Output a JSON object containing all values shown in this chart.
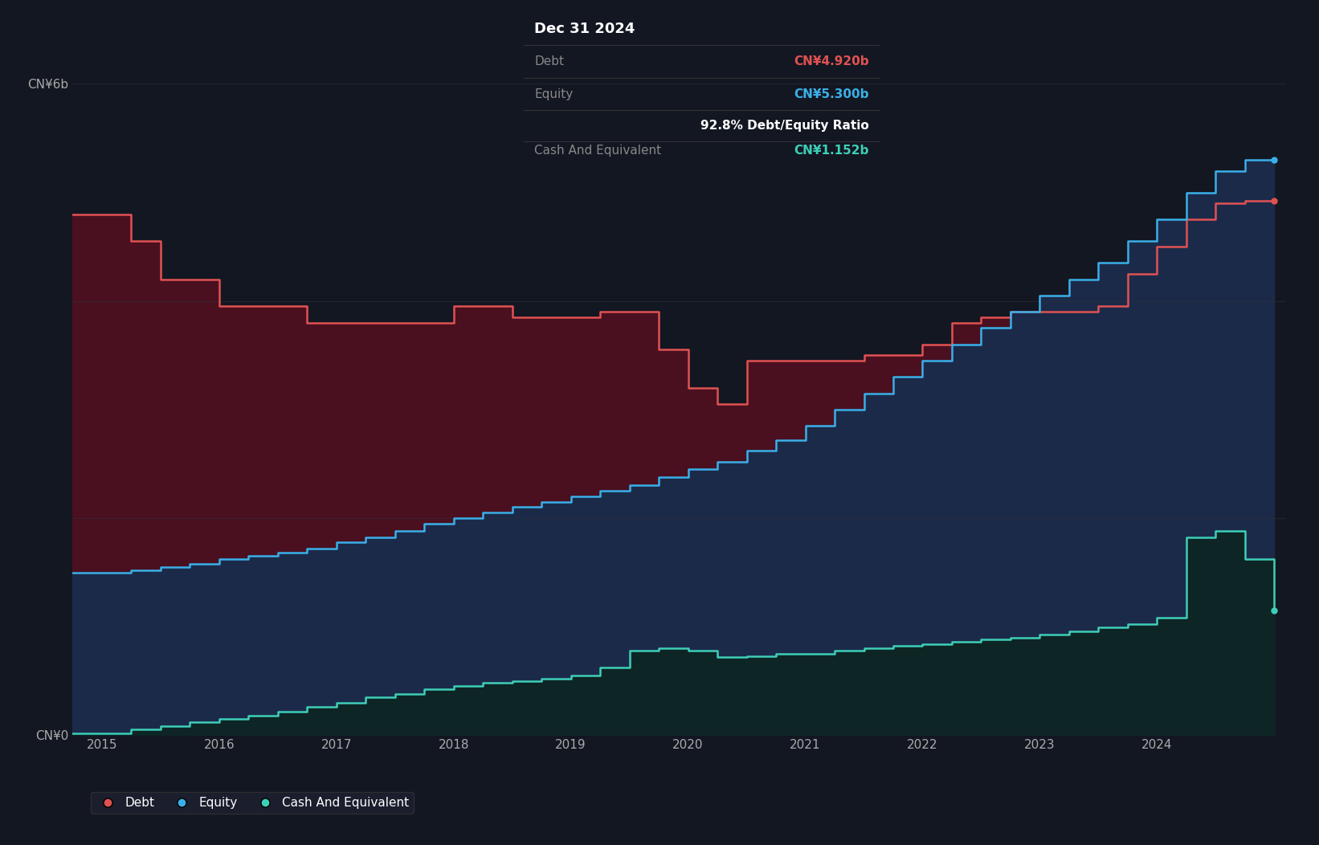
{
  "bg_color": "#131722",
  "plot_bg_color": "#131722",
  "grid_color": "#2a2e39",
  "debt_color": "#e05252",
  "equity_color": "#3ab0e8",
  "cash_color": "#3ecfb8",
  "debt_fill": "#4a1020",
  "equity_fill": "#1c2a4a",
  "cash_fill": "#0d2525",
  "tooltip": {
    "date": "Dec 31 2024",
    "debt_label": "Debt",
    "debt_value": "CN¥4.920b",
    "equity_label": "Equity",
    "equity_value": "CN¥5.300b",
    "ratio_text": "92.8% Debt/Equity Ratio",
    "cash_label": "Cash And Equivalent",
    "cash_value": "CN¥1.152b",
    "debt_color": "#e05252",
    "equity_color": "#3ab0e8",
    "cash_color": "#3ecfb8",
    "bg_color": "#050505",
    "border_color": "#404040"
  },
  "legend": [
    {
      "label": "Debt",
      "color": "#e05252"
    },
    {
      "label": "Equity",
      "color": "#3ab0e8"
    },
    {
      "label": "Cash And Equivalent",
      "color": "#3ecfb8"
    }
  ],
  "dates": [
    2014.75,
    2015.0,
    2015.25,
    2015.5,
    2015.75,
    2016.0,
    2016.25,
    2016.5,
    2016.75,
    2017.0,
    2017.25,
    2017.5,
    2017.75,
    2018.0,
    2018.25,
    2018.5,
    2018.75,
    2019.0,
    2019.25,
    2019.5,
    2019.75,
    2020.0,
    2020.25,
    2020.5,
    2020.75,
    2021.0,
    2021.25,
    2021.5,
    2021.75,
    2022.0,
    2022.25,
    2022.5,
    2022.75,
    2023.0,
    2023.25,
    2023.5,
    2023.75,
    2024.0,
    2024.25,
    2024.5,
    2024.75,
    2025.0
  ],
  "debt": [
    4.8,
    4.8,
    4.55,
    4.2,
    4.2,
    3.95,
    3.95,
    3.95,
    3.8,
    3.8,
    3.8,
    3.8,
    3.8,
    3.95,
    3.95,
    3.85,
    3.85,
    3.85,
    3.9,
    3.9,
    3.55,
    3.2,
    3.05,
    3.45,
    3.45,
    3.45,
    3.45,
    3.5,
    3.5,
    3.6,
    3.8,
    3.85,
    3.9,
    3.9,
    3.9,
    3.95,
    4.25,
    4.5,
    4.75,
    4.9,
    4.92,
    4.92
  ],
  "equity": [
    1.5,
    1.5,
    1.52,
    1.55,
    1.58,
    1.62,
    1.65,
    1.68,
    1.72,
    1.78,
    1.82,
    1.88,
    1.95,
    2.0,
    2.05,
    2.1,
    2.15,
    2.2,
    2.25,
    2.3,
    2.38,
    2.45,
    2.52,
    2.62,
    2.72,
    2.85,
    3.0,
    3.15,
    3.3,
    3.45,
    3.6,
    3.75,
    3.9,
    4.05,
    4.2,
    4.35,
    4.55,
    4.75,
    5.0,
    5.2,
    5.3,
    5.3
  ],
  "cash": [
    0.02,
    0.02,
    0.05,
    0.08,
    0.12,
    0.15,
    0.18,
    0.22,
    0.26,
    0.3,
    0.35,
    0.38,
    0.42,
    0.45,
    0.48,
    0.5,
    0.52,
    0.55,
    0.62,
    0.78,
    0.8,
    0.78,
    0.72,
    0.73,
    0.75,
    0.75,
    0.78,
    0.8,
    0.82,
    0.84,
    0.86,
    0.88,
    0.9,
    0.93,
    0.96,
    0.99,
    1.02,
    1.08,
    1.82,
    1.88,
    1.62,
    1.152
  ],
  "xlim": [
    2014.75,
    2025.1
  ],
  "ylim": [
    0,
    6.5
  ],
  "xtick_years": [
    2015,
    2016,
    2017,
    2018,
    2019,
    2020,
    2021,
    2022,
    2023,
    2024
  ]
}
